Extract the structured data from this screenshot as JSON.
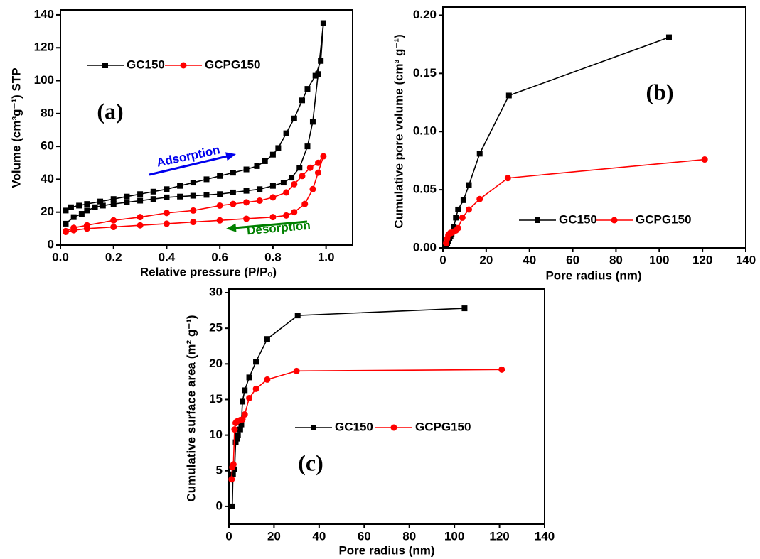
{
  "chart_data": [
    {
      "type": "line",
      "xlabel": "Relative pressure (P/Pₒ)",
      "ylabel": "Volume (cm³g⁻¹) STP",
      "annotations": [
        "(a)",
        "Adsorption",
        "Desorption"
      ],
      "xlim": [
        0,
        1.1
      ],
      "ylim": [
        0,
        143
      ],
      "xticks": [
        {
          "value": 0,
          "label": "0.0"
        },
        0.2,
        0.4,
        0.6,
        0.8,
        {
          "value": 1,
          "label": "1.0"
        }
      ],
      "yticks": [
        0,
        20,
        40,
        60,
        80,
        100,
        120,
        140
      ],
      "series": [
        {
          "name": "GC150",
          "color": "#000000",
          "marker": "square",
          "x": [
            0.02,
            0.05,
            0.08,
            0.1,
            0.13,
            0.16,
            0.2,
            0.25,
            0.3,
            0.35,
            0.4,
            0.45,
            0.5,
            0.55,
            0.6,
            0.65,
            0.7,
            0.75,
            0.8,
            0.84,
            0.87,
            0.9,
            0.93,
            0.95,
            0.97,
            0.99,
            0.98,
            0.96,
            0.93,
            0.91,
            0.88,
            0.85,
            0.82,
            0.8,
            0.77,
            0.74,
            0.7,
            0.65,
            0.6,
            0.55,
            0.5,
            0.45,
            0.4,
            0.35,
            0.3,
            0.25,
            0.2,
            0.15,
            0.1,
            0.07,
            0.04,
            0.02
          ],
          "values": [
            13,
            17,
            19,
            21,
            23,
            24,
            25,
            26,
            27,
            28,
            29,
            29.5,
            30,
            30.5,
            31,
            32,
            33,
            34,
            36,
            38,
            41,
            47,
            60,
            75,
            104,
            135,
            112,
            103,
            95,
            88,
            77,
            68,
            59,
            55,
            51,
            48,
            46,
            44,
            42,
            40,
            38,
            36,
            34,
            32.5,
            31,
            29.5,
            28,
            26.5,
            25,
            24,
            23,
            21
          ]
        },
        {
          "name": "GCPG150",
          "color": "#ff0000",
          "marker": "circle",
          "x": [
            0.02,
            0.05,
            0.1,
            0.2,
            0.3,
            0.4,
            0.5,
            0.6,
            0.7,
            0.8,
            0.85,
            0.88,
            0.92,
            0.95,
            0.97,
            0.99,
            0.97,
            0.94,
            0.91,
            0.88,
            0.85,
            0.8,
            0.75,
            0.7,
            0.65,
            0.6,
            0.5,
            0.4,
            0.3,
            0.2,
            0.1,
            0.05,
            0.02
          ],
          "values": [
            8,
            9,
            10,
            11,
            12,
            13,
            14,
            15,
            16,
            17,
            18,
            20,
            25,
            34,
            44,
            54,
            50,
            47,
            42,
            37,
            32,
            29,
            27,
            26,
            25,
            24,
            21,
            19.5,
            17,
            15,
            12,
            10.5,
            8.5
          ]
        }
      ]
    },
    {
      "type": "line",
      "xlabel": "Pore radius (nm)",
      "ylabel": "Cumulative pore volume (cm³ g⁻¹)",
      "annotations": [
        "(b)"
      ],
      "xlim": [
        0,
        140
      ],
      "ylim": [
        0,
        0.207
      ],
      "xticks": [
        0,
        20,
        40,
        60,
        80,
        100,
        120,
        140
      ],
      "yticks": [
        {
          "value": 0,
          "label": "0.00"
        },
        0.05,
        {
          "value": 0.1,
          "label": "0.10"
        },
        0.15,
        {
          "value": 0.2,
          "label": "0.20"
        }
      ],
      "series": [
        {
          "name": "GC150",
          "color": "#000000",
          "marker": "square",
          "x": [
            1.5,
            2,
            2.5,
            3,
            3.5,
            4,
            5,
            6,
            7,
            9.5,
            12,
            17,
            30.5,
            104.5
          ],
          "values": [
            0.002,
            0.004,
            0.006,
            0.008,
            0.01,
            0.012,
            0.018,
            0.026,
            0.033,
            0.041,
            0.054,
            0.081,
            0.131,
            0.181
          ]
        },
        {
          "name": "GCPG150",
          "color": "#ff0000",
          "marker": "circle",
          "x": [
            1.5,
            2,
            2.5,
            3,
            3.5,
            4,
            5,
            6,
            7,
            9,
            12,
            17,
            30,
            121
          ],
          "values": [
            0.004,
            0.008,
            0.011,
            0.012,
            0.013,
            0.013,
            0.014,
            0.015,
            0.017,
            0.026,
            0.033,
            0.042,
            0.06,
            0.076
          ]
        }
      ]
    },
    {
      "type": "line",
      "xlabel": "Pore radius (nm)",
      "ylabel": "Cumulative surface area (m² g⁻¹)",
      "annotations": [
        "(c)"
      ],
      "xlim": [
        0,
        140
      ],
      "ylim": [
        -2.5,
        30.5
      ],
      "xticks": [
        0,
        20,
        40,
        60,
        80,
        100,
        120,
        140
      ],
      "yticks": [
        0,
        5,
        10,
        15,
        20,
        25,
        30
      ],
      "series": [
        {
          "name": "GC150",
          "color": "#000000",
          "marker": "square",
          "x": [
            1.5,
            1.8,
            2.5,
            3,
            3.5,
            4,
            5,
            5.5,
            6,
            7,
            9,
            12,
            17,
            30.5,
            104.5
          ],
          "values": [
            0,
            4.5,
            5.2,
            9,
            9.5,
            10,
            10.8,
            11.5,
            14.7,
            16.3,
            18.1,
            20.3,
            23.5,
            26.8,
            27.8
          ]
        },
        {
          "name": "GCPG150",
          "color": "#ff0000",
          "marker": "circle",
          "x": [
            1.2,
            1.5,
            2,
            2.5,
            3,
            3.5,
            4,
            5,
            6,
            7,
            9,
            12,
            17,
            30,
            121
          ],
          "values": [
            3.8,
            5.5,
            5.9,
            10.8,
            11.7,
            11.9,
            12,
            12.1,
            12.2,
            12.9,
            15.2,
            16.5,
            17.8,
            19,
            19.2
          ]
        }
      ]
    }
  ]
}
